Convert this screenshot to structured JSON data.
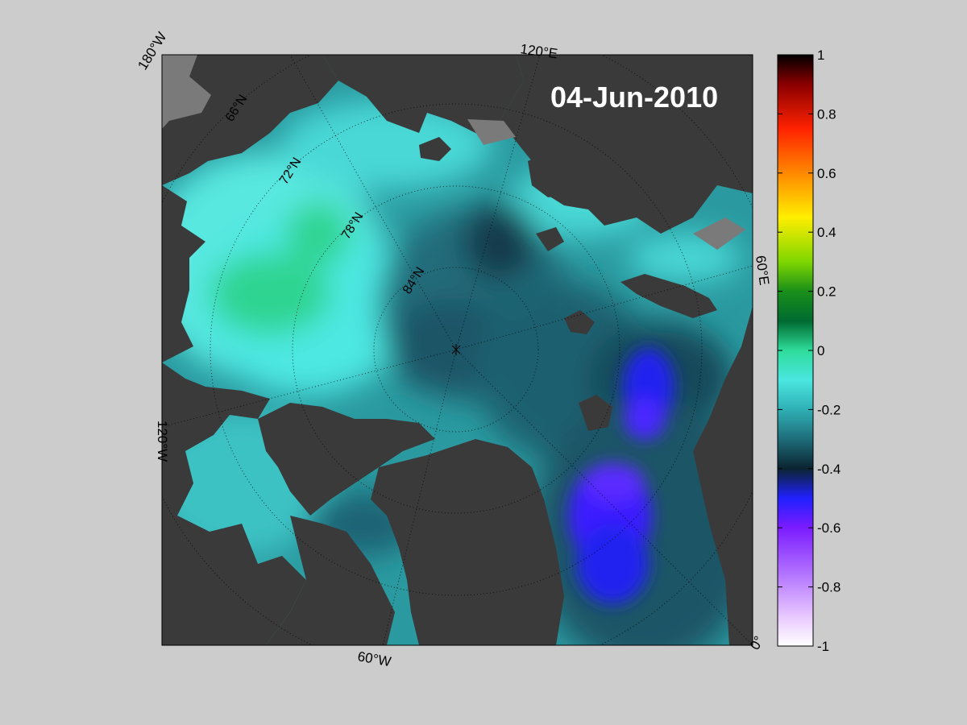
{
  "map": {
    "date": "04-Jun-2010",
    "projection": "north-polar-stereographic",
    "meridian_labels": [
      "180°W",
      "120°E",
      "60°E",
      "0°",
      "60°W",
      "120°W"
    ],
    "parallel_labels": [
      "66°N",
      "72°N",
      "78°N",
      "84°N"
    ],
    "colors": {
      "ocean_base": "#2a9aa0",
      "land": "#3a3a3a",
      "land_light": "#7a7a7a",
      "background": "#cccccc"
    }
  },
  "colorbar": {
    "min": -1,
    "max": 1,
    "tick_labels": [
      "1",
      "0.8",
      "0.6",
      "0.4",
      "0.2",
      "0",
      "-0.2",
      "-0.4",
      "-0.6",
      "-0.8",
      "-1"
    ],
    "stops": [
      {
        "value": 1.0,
        "color": "#000000"
      },
      {
        "value": 0.9,
        "color": "#8a0000"
      },
      {
        "value": 0.75,
        "color": "#ff2200"
      },
      {
        "value": 0.6,
        "color": "#ff8800"
      },
      {
        "value": 0.45,
        "color": "#ffee00"
      },
      {
        "value": 0.3,
        "color": "#7ed600"
      },
      {
        "value": 0.2,
        "color": "#1a8f1a"
      },
      {
        "value": 0.1,
        "color": "#006a30"
      },
      {
        "value": 0.0,
        "color": "#2edc9a"
      },
      {
        "value": -0.1,
        "color": "#4ae6e0"
      },
      {
        "value": -0.2,
        "color": "#2fb0b4"
      },
      {
        "value": -0.3,
        "color": "#1e6c7a"
      },
      {
        "value": -0.4,
        "color": "#0b2430"
      },
      {
        "value": -0.5,
        "color": "#2020ff"
      },
      {
        "value": -0.6,
        "color": "#7b1cff"
      },
      {
        "value": -0.75,
        "color": "#b070ff"
      },
      {
        "value": -0.9,
        "color": "#e8c8ff"
      },
      {
        "value": -1.0,
        "color": "#ffffff"
      }
    ]
  }
}
